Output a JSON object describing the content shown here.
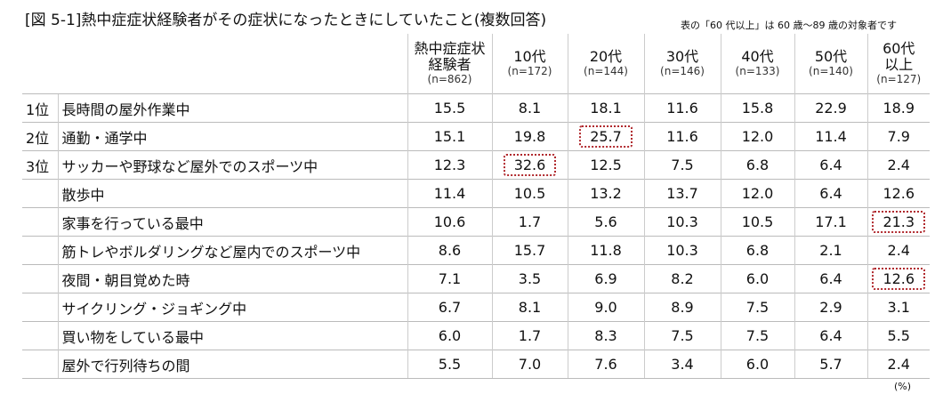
{
  "header": {
    "title": "[図 5-1]熱中症症状経験者がその症状になったときにしていたこと(複数回答)",
    "note": "表の「60 代以上」は 60 歳～89 歳の対象者です"
  },
  "table": {
    "columns": [
      {
        "lines": [
          "熱中症症状",
          "経験者"
        ],
        "n": "(n=862)"
      },
      {
        "lines": [
          "10代"
        ],
        "n": "(n=172)"
      },
      {
        "lines": [
          "20代"
        ],
        "n": "(n=144)"
      },
      {
        "lines": [
          "30代"
        ],
        "n": "(n=146)"
      },
      {
        "lines": [
          "40代"
        ],
        "n": "(n=133)"
      },
      {
        "lines": [
          "50代"
        ],
        "n": "(n=140)"
      },
      {
        "lines": [
          "60代",
          "以上"
        ],
        "n": "(n=127)"
      }
    ],
    "rows": [
      {
        "rank": "1位",
        "item": "長時間の屋外作業中",
        "values": [
          "15.5",
          "8.1",
          "18.1",
          "11.6",
          "15.8",
          "22.9",
          "18.9"
        ]
      },
      {
        "rank": "2位",
        "item": "通勤・通学中",
        "values": [
          "15.1",
          "19.8",
          "25.7",
          "11.6",
          "12.0",
          "11.4",
          "7.9"
        ]
      },
      {
        "rank": "3位",
        "item": "サッカーや野球など屋外でのスポーツ中",
        "values": [
          "12.3",
          "32.6",
          "12.5",
          "7.5",
          "6.8",
          "6.4",
          "2.4"
        ]
      },
      {
        "item": "散歩中",
        "values": [
          "11.4",
          "10.5",
          "13.2",
          "13.7",
          "12.0",
          "6.4",
          "12.6"
        ]
      },
      {
        "item": "家事を行っている最中",
        "values": [
          "10.6",
          "1.7",
          "5.6",
          "10.3",
          "10.5",
          "17.1",
          "21.3"
        ]
      },
      {
        "item": "筋トレやボルダリングなど屋内でのスポーツ中",
        "values": [
          "8.6",
          "15.7",
          "11.8",
          "10.3",
          "6.8",
          "2.1",
          "2.4"
        ]
      },
      {
        "item": "夜間・朝目覚めた時",
        "values": [
          "7.1",
          "3.5",
          "6.9",
          "8.2",
          "6.0",
          "6.4",
          "12.6"
        ]
      },
      {
        "item": "サイクリング・ジョギング中",
        "values": [
          "6.7",
          "8.1",
          "9.0",
          "8.9",
          "7.5",
          "2.9",
          "3.1"
        ]
      },
      {
        "item": "買い物をしている最中",
        "values": [
          "6.0",
          "1.7",
          "8.3",
          "7.5",
          "7.5",
          "6.4",
          "5.5"
        ]
      },
      {
        "item": "屋外で行列待ちの間",
        "values": [
          "5.5",
          "7.0",
          "7.6",
          "3.4",
          "6.0",
          "5.7",
          "2.4"
        ]
      }
    ],
    "unit": "(%)"
  }
}
